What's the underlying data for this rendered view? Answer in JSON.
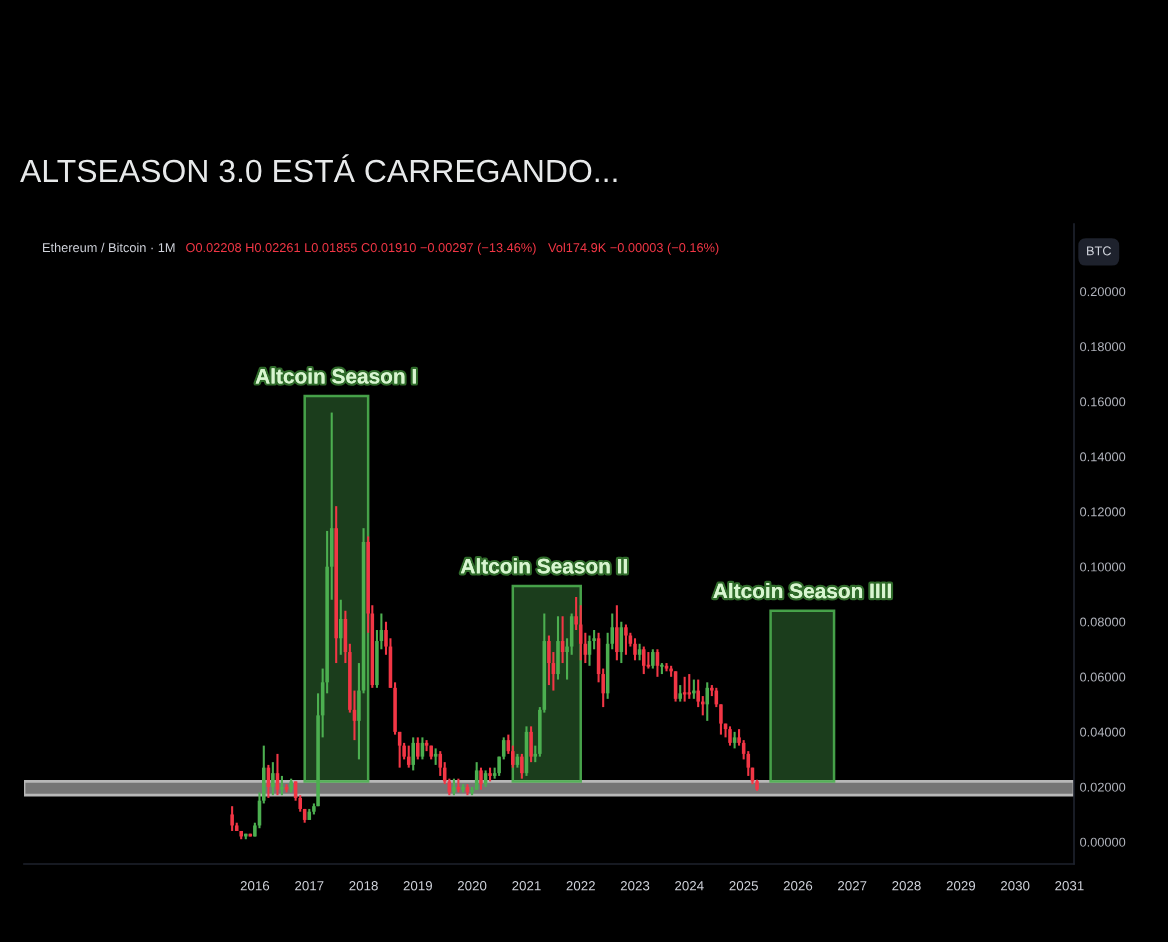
{
  "chart_data": {
    "type": "candlestick",
    "title": "ALTSEASON 3.0 ESTÁ CARREGANDO...",
    "subtitle": "Ethereum / Bitcoin · 1M",
    "ylabel": "BTC",
    "x": [
      "2015-08",
      "2015-09",
      "2015-10",
      "2015-11",
      "2015-12",
      "2016-01",
      "2016-02",
      "2016-03",
      "2016-04",
      "2016-05",
      "2016-06",
      "2016-07",
      "2016-08",
      "2016-09",
      "2016-10",
      "2016-11",
      "2016-12",
      "2017-01",
      "2017-02",
      "2017-03",
      "2017-04",
      "2017-05",
      "2017-06",
      "2017-07",
      "2017-08",
      "2017-09",
      "2017-10",
      "2017-11",
      "2017-12",
      "2018-01",
      "2018-02",
      "2018-03",
      "2018-04",
      "2018-05",
      "2018-06",
      "2018-07",
      "2018-08",
      "2018-09",
      "2018-10",
      "2018-11",
      "2018-12",
      "2019-01",
      "2019-02",
      "2019-03",
      "2019-04",
      "2019-05",
      "2019-06",
      "2019-07",
      "2019-08",
      "2019-09",
      "2019-10",
      "2019-11",
      "2019-12",
      "2020-01",
      "2020-02",
      "2020-03",
      "2020-04",
      "2020-05",
      "2020-06",
      "2020-07",
      "2020-08",
      "2020-09",
      "2020-10",
      "2020-11",
      "2020-12",
      "2021-01",
      "2021-02",
      "2021-03",
      "2021-04",
      "2021-05",
      "2021-06",
      "2021-07",
      "2021-08",
      "2021-09",
      "2021-10",
      "2021-11",
      "2021-12",
      "2022-01",
      "2022-02",
      "2022-03",
      "2022-04",
      "2022-05",
      "2022-06",
      "2022-07",
      "2022-08",
      "2022-09",
      "2022-10",
      "2022-11",
      "2022-12",
      "2023-01",
      "2023-02",
      "2023-03",
      "2023-04",
      "2023-05",
      "2023-06",
      "2023-07",
      "2023-08",
      "2023-09",
      "2023-10",
      "2023-11",
      "2023-12",
      "2024-01",
      "2024-02",
      "2024-03",
      "2024-04",
      "2024-05",
      "2024-06",
      "2024-07",
      "2024-08",
      "2024-09",
      "2024-10",
      "2024-11",
      "2024-12",
      "2025-01",
      "2025-02",
      "2025-03",
      "2025-04"
    ],
    "ohlc": [
      [
        0.01,
        0.013,
        0.004,
        0.006
      ],
      [
        0.006,
        0.007,
        0.004,
        0.004
      ],
      [
        0.004,
        0.004,
        0.001,
        0.002
      ],
      [
        0.002,
        0.003,
        0.001,
        0.003
      ],
      [
        0.003,
        0.003,
        0.002,
        0.002
      ],
      [
        0.002,
        0.007,
        0.002,
        0.006
      ],
      [
        0.006,
        0.018,
        0.005,
        0.015
      ],
      [
        0.015,
        0.035,
        0.014,
        0.027
      ],
      [
        0.027,
        0.028,
        0.016,
        0.02
      ],
      [
        0.02,
        0.029,
        0.017,
        0.025
      ],
      [
        0.025,
        0.032,
        0.017,
        0.019
      ],
      [
        0.019,
        0.024,
        0.017,
        0.02
      ],
      [
        0.02,
        0.021,
        0.018,
        0.019
      ],
      [
        0.019,
        0.023,
        0.018,
        0.022
      ],
      [
        0.022,
        0.022,
        0.015,
        0.016
      ],
      [
        0.016,
        0.017,
        0.011,
        0.012
      ],
      [
        0.012,
        0.012,
        0.007,
        0.008
      ],
      [
        0.008,
        0.012,
        0.008,
        0.011
      ],
      [
        0.011,
        0.014,
        0.01,
        0.013
      ],
      [
        0.013,
        0.054,
        0.013,
        0.046
      ],
      [
        0.046,
        0.063,
        0.038,
        0.058
      ],
      [
        0.058,
        0.113,
        0.054,
        0.1
      ],
      [
        0.1,
        0.156,
        0.088,
        0.114
      ],
      [
        0.114,
        0.122,
        0.065,
        0.074
      ],
      [
        0.074,
        0.088,
        0.068,
        0.081
      ],
      [
        0.081,
        0.084,
        0.065,
        0.069
      ],
      [
        0.069,
        0.072,
        0.047,
        0.048
      ],
      [
        0.048,
        0.055,
        0.037,
        0.044
      ],
      [
        0.044,
        0.065,
        0.03,
        0.055
      ],
      [
        0.055,
        0.114,
        0.054,
        0.109
      ],
      [
        0.109,
        0.111,
        0.076,
        0.083
      ],
      [
        0.083,
        0.086,
        0.056,
        0.057
      ],
      [
        0.057,
        0.077,
        0.056,
        0.073
      ],
      [
        0.073,
        0.083,
        0.07,
        0.077
      ],
      [
        0.077,
        0.08,
        0.068,
        0.071
      ],
      [
        0.071,
        0.074,
        0.056,
        0.056
      ],
      [
        0.056,
        0.058,
        0.039,
        0.04
      ],
      [
        0.04,
        0.04,
        0.027,
        0.035
      ],
      [
        0.035,
        0.036,
        0.03,
        0.031
      ],
      [
        0.031,
        0.035,
        0.027,
        0.028
      ],
      [
        0.028,
        0.038,
        0.026,
        0.036
      ],
      [
        0.036,
        0.038,
        0.03,
        0.031
      ],
      [
        0.031,
        0.038,
        0.03,
        0.036
      ],
      [
        0.036,
        0.037,
        0.033,
        0.035
      ],
      [
        0.035,
        0.035,
        0.03,
        0.031
      ],
      [
        0.031,
        0.034,
        0.028,
        0.032
      ],
      [
        0.032,
        0.033,
        0.024,
        0.027
      ],
      [
        0.027,
        0.029,
        0.021,
        0.022
      ],
      [
        0.022,
        0.023,
        0.017,
        0.018
      ],
      [
        0.018,
        0.023,
        0.017,
        0.02
      ],
      [
        0.02,
        0.023,
        0.018,
        0.019
      ],
      [
        0.019,
        0.021,
        0.018,
        0.02
      ],
      [
        0.02,
        0.021,
        0.017,
        0.018
      ],
      [
        0.018,
        0.02,
        0.017,
        0.019
      ],
      [
        0.019,
        0.029,
        0.019,
        0.026
      ],
      [
        0.026,
        0.027,
        0.019,
        0.021
      ],
      [
        0.021,
        0.026,
        0.02,
        0.025
      ],
      [
        0.025,
        0.027,
        0.022,
        0.024
      ],
      [
        0.024,
        0.027,
        0.023,
        0.025
      ],
      [
        0.025,
        0.031,
        0.024,
        0.031
      ],
      [
        0.031,
        0.038,
        0.03,
        0.037
      ],
      [
        0.037,
        0.039,
        0.032,
        0.033
      ],
      [
        0.033,
        0.035,
        0.027,
        0.028
      ],
      [
        0.028,
        0.032,
        0.027,
        0.031
      ],
      [
        0.031,
        0.032,
        0.023,
        0.025
      ],
      [
        0.025,
        0.042,
        0.024,
        0.04
      ],
      [
        0.04,
        0.042,
        0.029,
        0.031
      ],
      [
        0.031,
        0.035,
        0.029,
        0.032
      ],
      [
        0.032,
        0.049,
        0.031,
        0.048
      ],
      [
        0.048,
        0.083,
        0.047,
        0.073
      ],
      [
        0.073,
        0.075,
        0.057,
        0.065
      ],
      [
        0.065,
        0.069,
        0.055,
        0.061
      ],
      [
        0.061,
        0.082,
        0.059,
        0.073
      ],
      [
        0.073,
        0.082,
        0.065,
        0.069
      ],
      [
        0.069,
        0.074,
        0.059,
        0.071
      ],
      [
        0.071,
        0.083,
        0.068,
        0.082
      ],
      [
        0.082,
        0.089,
        0.077,
        0.079
      ],
      [
        0.079,
        0.086,
        0.066,
        0.072
      ],
      [
        0.072,
        0.076,
        0.065,
        0.068
      ],
      [
        0.068,
        0.075,
        0.064,
        0.073
      ],
      [
        0.073,
        0.077,
        0.07,
        0.074
      ],
      [
        0.074,
        0.076,
        0.058,
        0.061
      ],
      [
        0.061,
        0.063,
        0.049,
        0.054
      ],
      [
        0.054,
        0.076,
        0.052,
        0.072
      ],
      [
        0.072,
        0.083,
        0.07,
        0.078
      ],
      [
        0.078,
        0.086,
        0.066,
        0.069
      ],
      [
        0.069,
        0.08,
        0.065,
        0.078
      ],
      [
        0.078,
        0.079,
        0.068,
        0.075
      ],
      [
        0.075,
        0.076,
        0.071,
        0.072
      ],
      [
        0.072,
        0.074,
        0.066,
        0.068
      ],
      [
        0.068,
        0.072,
        0.066,
        0.07
      ],
      [
        0.07,
        0.071,
        0.061,
        0.064
      ],
      [
        0.064,
        0.069,
        0.063,
        0.064
      ],
      [
        0.064,
        0.07,
        0.063,
        0.069
      ],
      [
        0.069,
        0.07,
        0.06,
        0.064
      ],
      [
        0.064,
        0.065,
        0.061,
        0.064
      ],
      [
        0.064,
        0.065,
        0.062,
        0.063
      ],
      [
        0.063,
        0.064,
        0.06,
        0.062
      ],
      [
        0.062,
        0.062,
        0.051,
        0.052
      ],
      [
        0.052,
        0.057,
        0.051,
        0.054
      ],
      [
        0.054,
        0.06,
        0.051,
        0.054
      ],
      [
        0.054,
        0.061,
        0.052,
        0.054
      ],
      [
        0.054,
        0.059,
        0.052,
        0.055
      ],
      [
        0.055,
        0.059,
        0.049,
        0.051
      ],
      [
        0.051,
        0.053,
        0.046,
        0.05
      ],
      [
        0.05,
        0.058,
        0.044,
        0.056
      ],
      [
        0.056,
        0.057,
        0.053,
        0.055
      ],
      [
        0.055,
        0.056,
        0.049,
        0.05
      ],
      [
        0.05,
        0.05,
        0.039,
        0.043
      ],
      [
        0.043,
        0.043,
        0.038,
        0.041
      ],
      [
        0.041,
        0.042,
        0.035,
        0.036
      ],
      [
        0.036,
        0.04,
        0.034,
        0.038
      ],
      [
        0.038,
        0.041,
        0.035,
        0.036
      ],
      [
        0.036,
        0.037,
        0.03,
        0.032
      ],
      [
        0.032,
        0.033,
        0.024,
        0.027
      ],
      [
        0.027,
        0.027,
        0.021,
        0.022
      ],
      [
        0.02208,
        0.02261,
        0.01855,
        0.0191
      ]
    ],
    "colors": [
      "#f23645",
      "#f23645",
      "#f23645",
      "#4caf50",
      "#f23645",
      "#4caf50",
      "#4caf50",
      "#4caf50",
      "#f23645",
      "#4caf50",
      "#f23645",
      "#4caf50",
      "#f23645",
      "#4caf50",
      "#f23645",
      "#f23645",
      "#f23645",
      "#4caf50",
      "#4caf50",
      "#4caf50",
      "#4caf50",
      "#4caf50",
      "#4caf50",
      "#f23645",
      "#4caf50",
      "#f23645",
      "#f23645",
      "#f23645",
      "#4caf50",
      "#4caf50",
      "#f23645",
      "#f23645",
      "#4caf50",
      "#4caf50",
      "#f23645",
      "#f23645",
      "#f23645",
      "#f23645",
      "#f23645",
      "#f23645",
      "#4caf50",
      "#f23645",
      "#4caf50",
      "#f23645",
      "#f23645",
      "#4caf50",
      "#f23645",
      "#f23645",
      "#f23645",
      "#4caf50",
      "#f23645",
      "#4caf50",
      "#f23645",
      "#4caf50",
      "#4caf50",
      "#f23645",
      "#4caf50",
      "#f23645",
      "#4caf50",
      "#4caf50",
      "#4caf50",
      "#f23645",
      "#f23645",
      "#4caf50",
      "#f23645",
      "#4caf50",
      "#f23645",
      "#4caf50",
      "#4caf50",
      "#4caf50",
      "#f23645",
      "#f23645",
      "#4caf50",
      "#f23645",
      "#4caf50",
      "#4caf50",
      "#f23645",
      "#f23645",
      "#f23645",
      "#4caf50",
      "#4caf50",
      "#f23645",
      "#f23645",
      "#4caf50",
      "#4caf50",
      "#f23645",
      "#4caf50",
      "#f23645",
      "#f23645",
      "#f23645",
      "#4caf50",
      "#f23645",
      "#f23645",
      "#4caf50",
      "#f23645",
      "#4caf50",
      "#f23645",
      "#f23645",
      "#f23645",
      "#4caf50",
      "#f23645",
      "#f23645",
      "#4caf50",
      "#f23645",
      "#f23645",
      "#4caf50",
      "#f23645",
      "#f23645",
      "#f23645",
      "#f23645",
      "#f23645",
      "#4caf50",
      "#f23645",
      "#f23645",
      "#f23645",
      "#f23645",
      "#f23645"
    ],
    "xlim": [
      "2011-10",
      "2031-02"
    ],
    "xticks": [
      "2016",
      "2017",
      "2018",
      "2019",
      "2020",
      "2021",
      "2022",
      "2023",
      "2024",
      "2025",
      "2026",
      "2027",
      "2028",
      "2029",
      "2030",
      "2031"
    ],
    "ylim": [
      -0.008,
      0.2245
    ],
    "yticks": [
      {
        "value": 0.0,
        "label": "0.00000"
      },
      {
        "value": 0.02,
        "label": "0.02000"
      },
      {
        "value": 0.04,
        "label": "0.04000"
      },
      {
        "value": 0.06,
        "label": "0.06000"
      },
      {
        "value": 0.08,
        "label": "0.08000"
      },
      {
        "value": 0.1,
        "label": "0.10000"
      },
      {
        "value": 0.12,
        "label": "0.12000"
      },
      {
        "value": 0.14,
        "label": "0.14000"
      },
      {
        "value": 0.16,
        "label": "0.16000"
      },
      {
        "value": 0.18,
        "label": "0.18000"
      },
      {
        "value": 0.2,
        "label": "0.20000"
      }
    ],
    "bands": [
      {
        "axis": "y",
        "from": 0.017,
        "to": 0.022,
        "color": "#8a8a8a"
      },
      {
        "axis": "x",
        "from": "2016-12",
        "to": "2018-02",
        "color": "#4caf50"
      },
      {
        "axis": "x",
        "from": "2020-10",
        "to": "2022-01",
        "color": "#4caf50"
      },
      {
        "axis": "x",
        "from": "2025-07",
        "to": "2026-09",
        "color": "#4caf50"
      }
    ],
    "annotations": [
      {
        "text": "Altcoin Season I",
        "x": "2017-07",
        "y": 0.162
      },
      {
        "text": "Altcoin Season II",
        "x": "2021-05",
        "y": 0.093
      },
      {
        "text": "Altcoin Season IIII",
        "x": "2026-02",
        "y": 0.084
      },
      "O0.02208 H0.02261 L0.01855 C0.01910 −0.00297 (−13.46%)",
      "Vol174.9K −0.00003 (−0.16%)"
    ]
  }
}
